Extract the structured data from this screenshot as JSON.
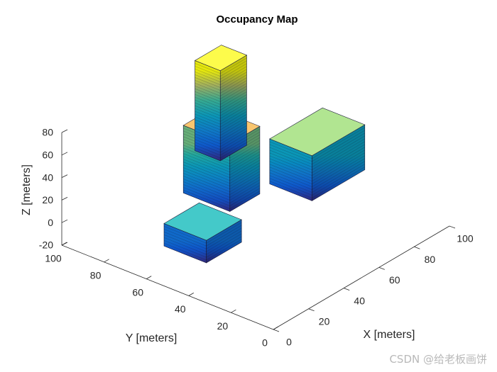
{
  "chart_data": {
    "type": "3d-occupancy",
    "title": "Occupancy Map",
    "xlabel": "X [meters]",
    "ylabel": "Y [meters]",
    "zlabel": "Z [meters]",
    "x_ticks": [
      "0",
      "20",
      "40",
      "60",
      "80",
      "100"
    ],
    "y_ticks": [
      "0",
      "20",
      "40",
      "60",
      "80",
      "100"
    ],
    "z_ticks": [
      "-20",
      "0",
      "20",
      "40",
      "60",
      "80"
    ],
    "xlim": [
      0,
      100
    ],
    "ylim": [
      0,
      100
    ],
    "zlim": [
      -20,
      80
    ],
    "colormap": "parula",
    "obstacles": [
      {
        "name": "cube-small",
        "x": [
          10,
          30
        ],
        "y": [
          40,
          60
        ],
        "z": [
          0,
          20
        ],
        "top_color": "#44c9c9"
      },
      {
        "name": "block-tall-back",
        "x": [
          45,
          62
        ],
        "y": [
          58,
          80
        ],
        "z": [
          0,
          60
        ],
        "top_color": "#f9c66f"
      },
      {
        "name": "pillar-yellow",
        "x": [
          72,
          87
        ],
        "y": [
          85,
          97
        ],
        "z": [
          0,
          80
        ],
        "top_color": "#fdfb4b"
      },
      {
        "name": "block-green",
        "x": [
          70,
          100
        ],
        "y": [
          40,
          60
        ],
        "z": [
          0,
          40
        ],
        "top_color": "#b1e591"
      }
    ]
  },
  "watermark": "CSDN @给老板画饼"
}
